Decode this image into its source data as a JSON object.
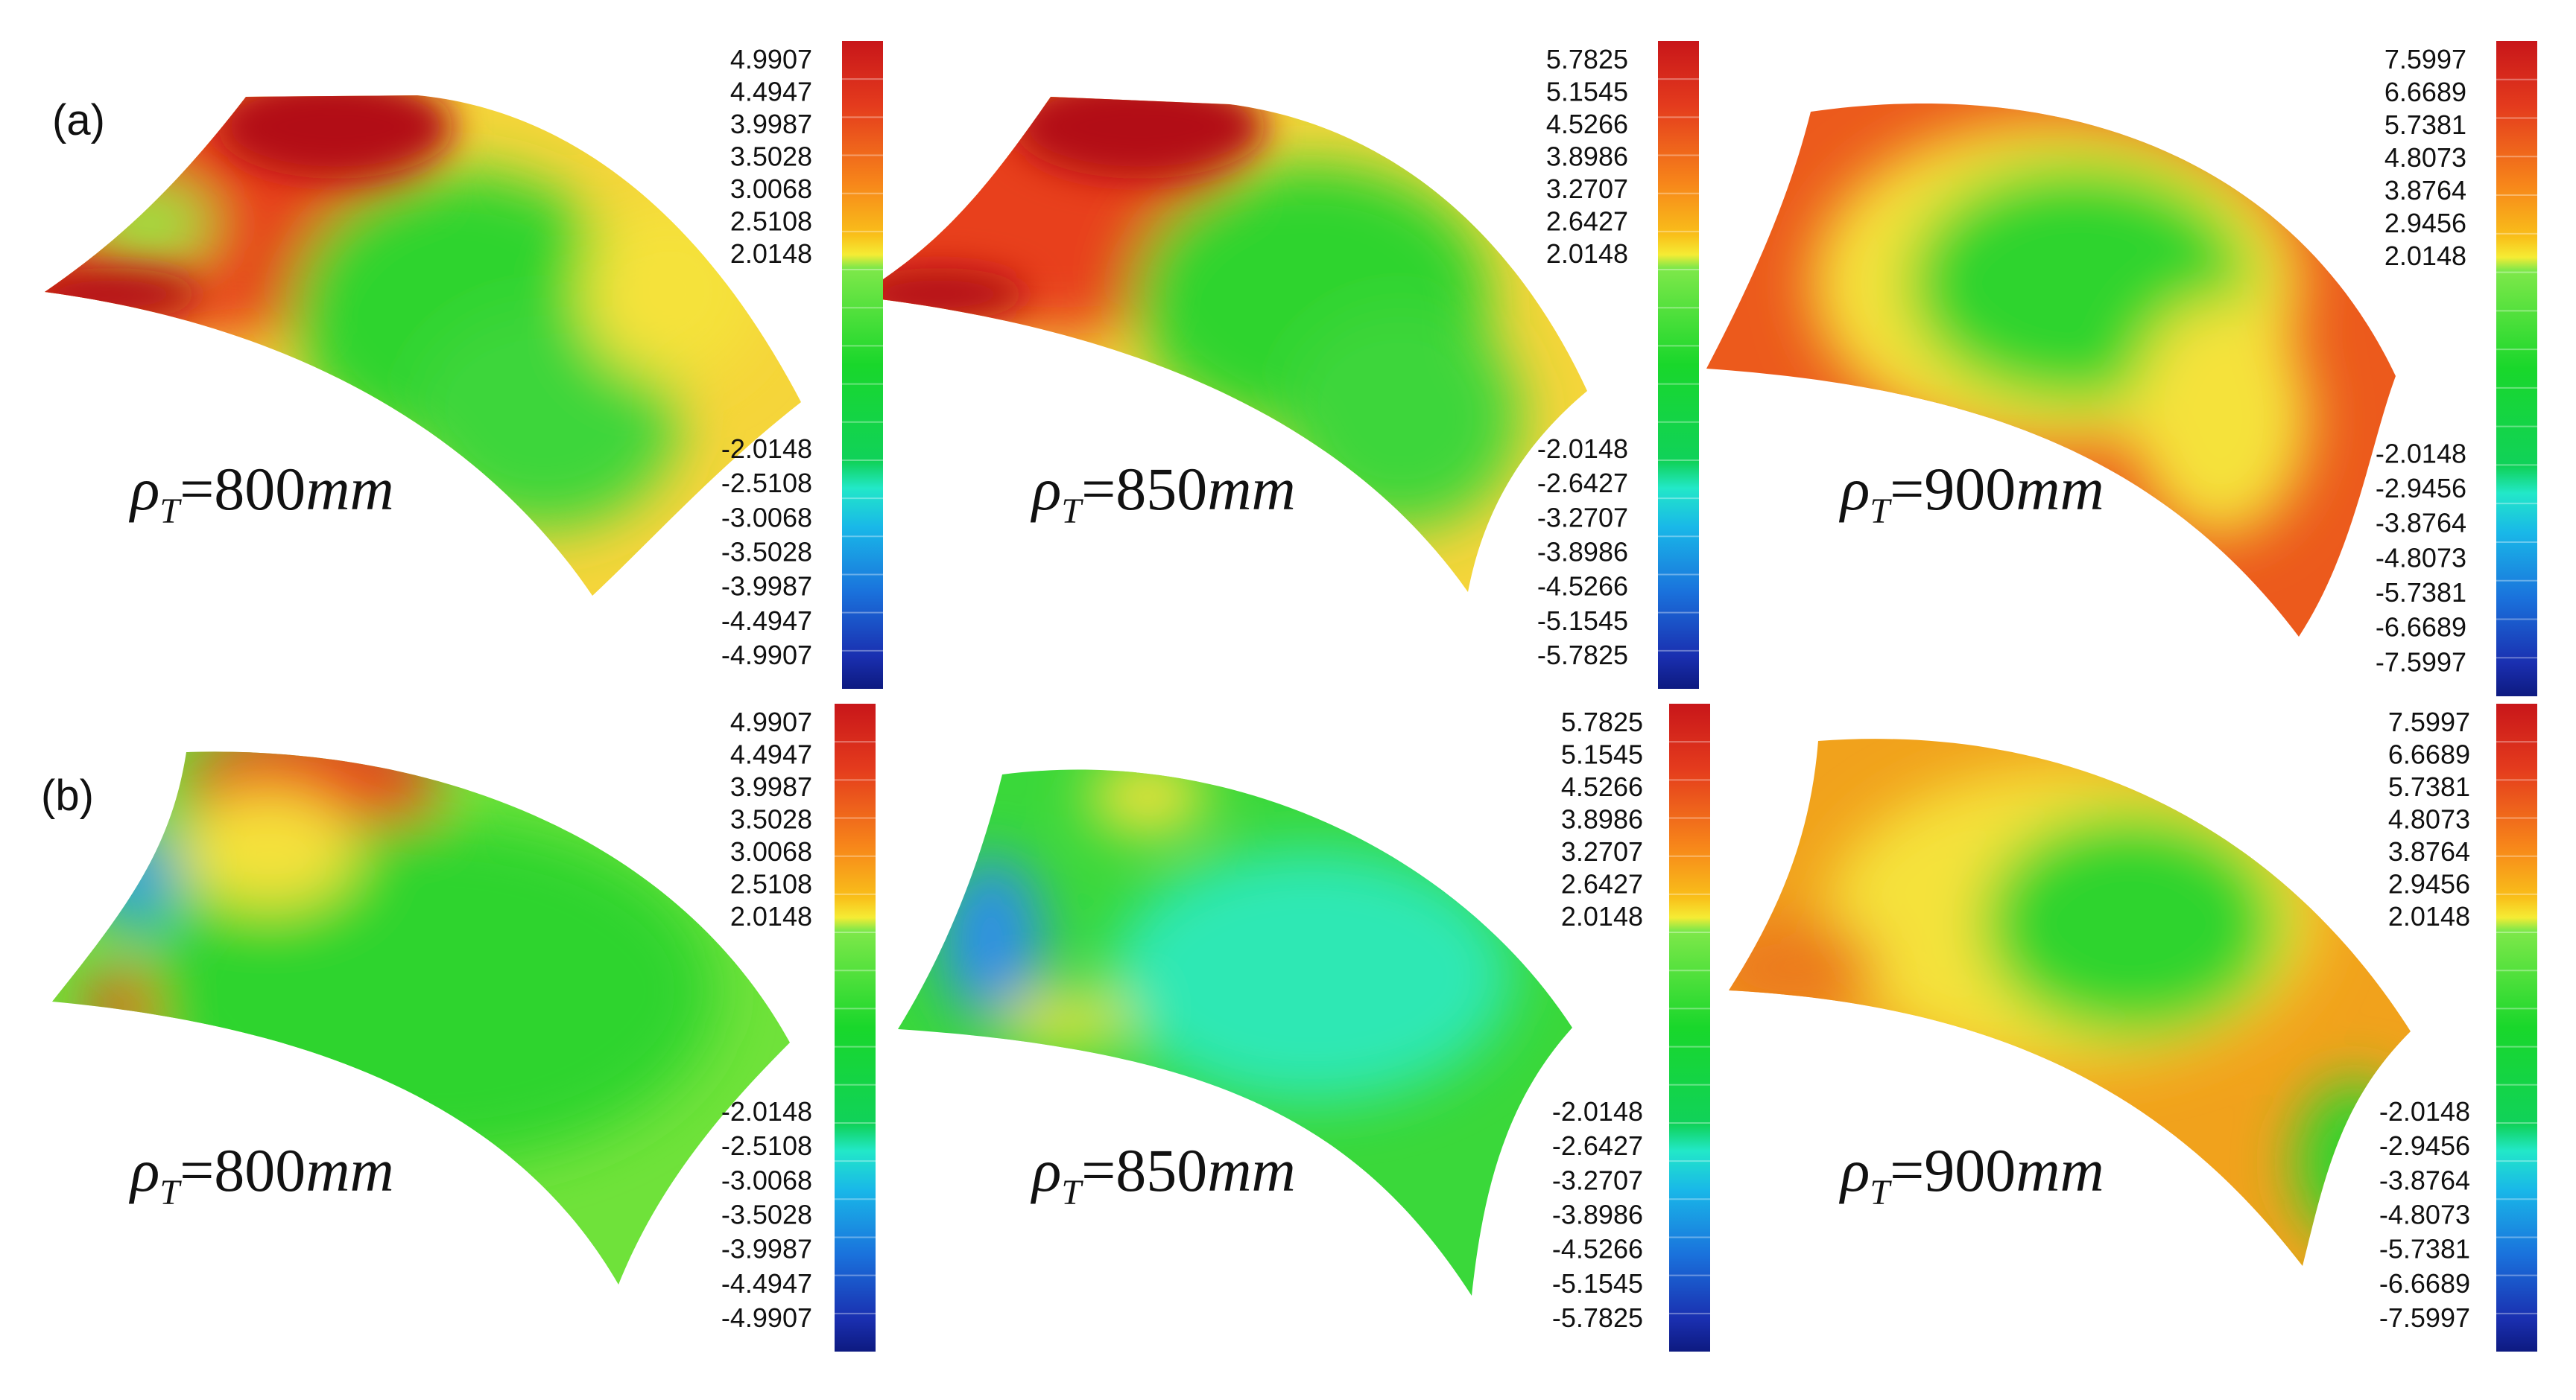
{
  "figure": {
    "rows": [
      {
        "label": "(a)",
        "panels": [
          {
            "symbol": "ρ",
            "subscript": "T",
            "value_text": "=800",
            "unit": "mm",
            "colorbar_ticks": [
              "4.9907",
              "4.4947",
              "3.9987",
              "3.5028",
              "3.0068",
              "2.5108",
              "2.0148",
              "-2.0148",
              "-2.5108",
              "-3.0068",
              "-3.5028",
              "-3.9987",
              "-4.4947",
              "-4.9907"
            ]
          },
          {
            "symbol": "ρ",
            "subscript": "T",
            "value_text": "=850",
            "unit": "mm",
            "colorbar_ticks": [
              "5.7825",
              "5.1545",
              "4.5266",
              "3.8986",
              "3.2707",
              "2.6427",
              "2.0148",
              "-2.0148",
              "-2.6427",
              "-3.2707",
              "-3.8986",
              "-4.5266",
              "-5.1545",
              "-5.7825"
            ]
          },
          {
            "symbol": "ρ",
            "subscript": "T",
            "value_text": "=900",
            "unit": "mm",
            "colorbar_ticks": [
              "7.5997",
              "6.6689",
              "5.7381",
              "4.8073",
              "3.8764",
              "2.9456",
              "2.0148",
              "-2.0148",
              "-2.9456",
              "-3.8764",
              "-4.8073",
              "-5.7381",
              "-6.6689",
              "-7.5997"
            ]
          }
        ]
      },
      {
        "label": "(b)",
        "panels": [
          {
            "symbol": "ρ",
            "subscript": "T",
            "value_text": "=800",
            "unit": "mm",
            "colorbar_ticks": [
              "4.9907",
              "4.4947",
              "3.9987",
              "3.5028",
              "3.0068",
              "2.5108",
              "2.0148",
              "-2.0148",
              "-2.5108",
              "-3.0068",
              "-3.5028",
              "-3.9987",
              "-4.4947",
              "-4.9907"
            ]
          },
          {
            "symbol": "ρ",
            "subscript": "T",
            "value_text": "=850",
            "unit": "mm",
            "colorbar_ticks": [
              "5.7825",
              "5.1545",
              "4.5266",
              "3.8986",
              "3.2707",
              "2.6427",
              "2.0148",
              "-2.0148",
              "-2.6427",
              "-3.2707",
              "-3.8986",
              "-4.5266",
              "-5.1545",
              "-5.7825"
            ]
          },
          {
            "symbol": "ρ",
            "subscript": "T",
            "value_text": "=900",
            "unit": "mm",
            "colorbar_ticks": [
              "7.5997",
              "6.6689",
              "5.7381",
              "4.8073",
              "3.8764",
              "2.9456",
              "2.0148",
              "-2.0148",
              "-2.9456",
              "-3.8764",
              "-4.8073",
              "-5.7381",
              "-6.6689",
              "-7.5997"
            ]
          }
        ]
      }
    ],
    "colormap": [
      "#8b0000",
      "#c8161a",
      "#e43b1d",
      "#f25f1c",
      "#f7861a",
      "#f9ac1a",
      "#fbe02b",
      "#7fe84a",
      "#19d72b",
      "#0fd14a",
      "#22e8b0",
      "#19cde8",
      "#18a6e8",
      "#1a7fe0",
      "#1a52d0",
      "#1a2fb0",
      "#0d1a80"
    ],
    "surface_colors": {
      "red": "#e8401b",
      "dark_red": "#b21015",
      "orange": "#f28a1c",
      "yellow": "#f5e23a",
      "light_green": "#8ee83c",
      "green": "#2fd42f",
      "cyan": "#2ee8b4",
      "blue": "#2f8fe6"
    }
  }
}
